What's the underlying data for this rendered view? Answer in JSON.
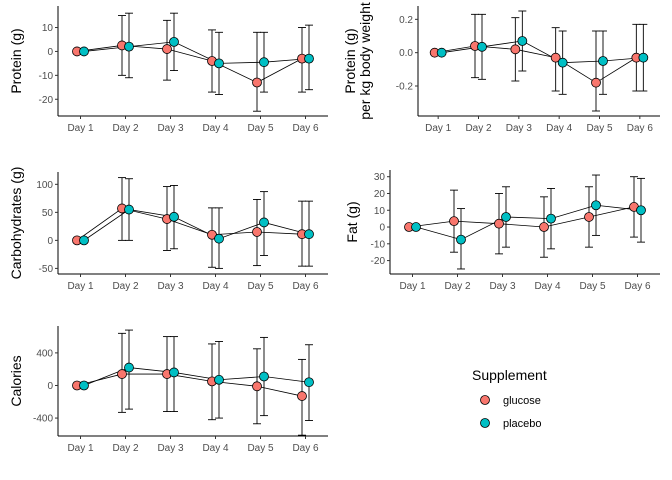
{
  "chart_data": [
    {
      "type": "line",
      "categories": [
        "Day 1",
        "Day 2",
        "Day 3",
        "Day 4",
        "Day 5",
        "Day 6"
      ],
      "ylabel": [
        "Protein (g)"
      ],
      "yticks": [
        -20,
        -10,
        0,
        10
      ],
      "ylim": [
        -27,
        19
      ],
      "series": [
        {
          "name": "glucose",
          "values": [
            0,
            2.5,
            1,
            -4,
            -13,
            -3
          ],
          "err_low": [
            0,
            -10,
            -12,
            -17,
            -25,
            -17
          ],
          "err_high": [
            0,
            15,
            13,
            9,
            8,
            10
          ]
        },
        {
          "name": "placebo",
          "values": [
            0,
            2,
            4,
            -5,
            -4.5,
            -3
          ],
          "err_low": [
            0,
            -11,
            -8,
            -18,
            -17,
            -16
          ],
          "err_high": [
            0,
            16,
            16,
            8,
            8,
            11
          ]
        }
      ]
    },
    {
      "type": "line",
      "categories": [
        "Day 1",
        "Day 2",
        "Day 3",
        "Day 4",
        "Day 5",
        "Day 6"
      ],
      "ylabel": [
        "Protein (g)",
        "per kg body weight"
      ],
      "yticks": [
        -0.2,
        0.0,
        0.2
      ],
      "ylim": [
        -0.38,
        0.28
      ],
      "series": [
        {
          "name": "glucose",
          "values": [
            0,
            0.04,
            0.02,
            -0.03,
            -0.18,
            -0.03
          ],
          "err_low": [
            0,
            -0.15,
            -0.17,
            -0.23,
            -0.35,
            -0.23
          ],
          "err_high": [
            0,
            0.23,
            0.21,
            0.15,
            0.13,
            0.17
          ]
        },
        {
          "name": "placebo",
          "values": [
            0,
            0.035,
            0.07,
            -0.06,
            -0.05,
            -0.03
          ],
          "err_low": [
            0,
            -0.16,
            -0.11,
            -0.25,
            -0.25,
            -0.23
          ],
          "err_high": [
            0,
            0.23,
            0.25,
            0.13,
            0.13,
            0.17
          ]
        }
      ]
    },
    {
      "type": "line",
      "categories": [
        "Day 1",
        "Day 2",
        "Day 3",
        "Day 4",
        "Day 5",
        "Day 6"
      ],
      "ylabel": [
        "Carbohydrates (g)"
      ],
      "yticks": [
        -50,
        0,
        50,
        100
      ],
      "ylim": [
        -60,
        122
      ],
      "series": [
        {
          "name": "glucose",
          "values": [
            0,
            57,
            38,
            10,
            15,
            11
          ],
          "err_low": [
            0,
            0,
            -18,
            -48,
            -45,
            -46
          ],
          "err_high": [
            0,
            112,
            96,
            58,
            73,
            70
          ]
        },
        {
          "name": "placebo",
          "values": [
            0,
            55,
            42,
            3,
            32,
            11
          ],
          "err_low": [
            0,
            0,
            -15,
            -50,
            -27,
            -46
          ],
          "err_high": [
            0,
            110,
            98,
            58,
            87,
            70
          ]
        }
      ]
    },
    {
      "type": "line",
      "categories": [
        "Day 1",
        "Day 2",
        "Day 3",
        "Day 4",
        "Day 5",
        "Day 6"
      ],
      "ylabel": [
        "Fat (g)"
      ],
      "yticks": [
        -20,
        -10,
        0,
        10,
        20,
        30
      ],
      "ylim": [
        -28,
        34
      ],
      "series": [
        {
          "name": "glucose",
          "values": [
            0,
            3.5,
            2,
            0,
            6,
            12
          ],
          "err_low": [
            0,
            -15,
            -16,
            -18,
            -12,
            -6
          ],
          "err_high": [
            0,
            22,
            20,
            18,
            24,
            30
          ]
        },
        {
          "name": "placebo",
          "values": [
            0,
            -7.5,
            6,
            5,
            13,
            10
          ],
          "err_low": [
            0,
            -25,
            -12,
            -13,
            -5,
            -9
          ],
          "err_high": [
            0,
            11,
            24,
            23,
            31,
            29
          ]
        }
      ]
    },
    {
      "type": "line",
      "categories": [
        "Day 1",
        "Day 2",
        "Day 3",
        "Day 4",
        "Day 5",
        "Day 6"
      ],
      "ylabel": [
        "Calories"
      ],
      "yticks": [
        -400,
        0,
        400
      ],
      "ylim": [
        -620,
        730
      ],
      "series": [
        {
          "name": "glucose",
          "values": [
            0,
            140,
            140,
            50,
            -10,
            -130
          ],
          "err_low": [
            0,
            -330,
            -320,
            -420,
            -470,
            -610
          ],
          "err_high": [
            0,
            640,
            600,
            510,
            450,
            320
          ]
        },
        {
          "name": "placebo",
          "values": [
            0,
            220,
            160,
            70,
            110,
            40
          ],
          "err_low": [
            0,
            -290,
            -320,
            -400,
            -370,
            -430
          ],
          "err_high": [
            0,
            680,
            600,
            540,
            590,
            500
          ]
        }
      ]
    }
  ],
  "legend": {
    "title": "Supplement",
    "items": [
      {
        "label": "glucose",
        "color": "#F8766D"
      },
      {
        "label": "placebo",
        "color": "#00BFC4"
      }
    ]
  },
  "colors": {
    "glucose": "#F8766D",
    "placebo": "#00BFC4"
  }
}
